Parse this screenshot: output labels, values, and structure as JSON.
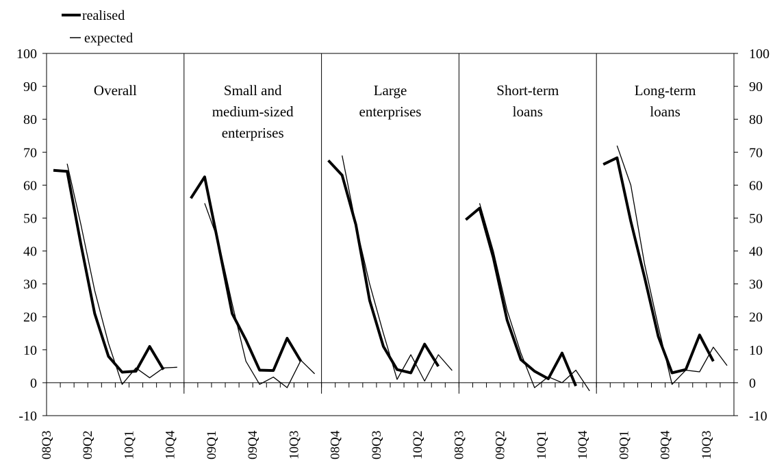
{
  "chart_data": {
    "type": "line",
    "legend": {
      "placement": "top-left",
      "entries": [
        {
          "label": "realised",
          "style": "thick"
        },
        {
          "label": "expected",
          "style": "thin"
        }
      ]
    },
    "y_axis": {
      "ylim": [
        -10,
        100
      ],
      "ticks": [
        -10,
        0,
        10,
        20,
        30,
        40,
        50,
        60,
        70,
        80,
        90,
        100
      ],
      "left_and_right": true
    },
    "grid": false,
    "x_period_labels": [
      "08Q3",
      "09Q2",
      "10Q1",
      "10Q4"
    ],
    "x_period_labels_sparse": [
      [
        "08Q3",
        "09Q2",
        "10Q1",
        "10Q4"
      ],
      [
        "09Q1",
        "09Q4",
        "10Q3"
      ],
      [
        "08Q4",
        "09Q3",
        "10Q2"
      ],
      [
        "08Q3",
        "09Q2",
        "10Q1",
        "10Q4"
      ],
      [
        "09Q1",
        "09Q4",
        "10Q3"
      ]
    ],
    "panels": [
      {
        "title_lines": [
          "Overall"
        ],
        "quarters": [
          "08Q3",
          "08Q4",
          "09Q1",
          "09Q2",
          "09Q3",
          "09Q4",
          "10Q1",
          "10Q2",
          "10Q3",
          "10Q4"
        ],
        "series": [
          {
            "name": "realised",
            "values": [
              64.5,
              64.2,
              42,
              21,
              8,
              3.2,
              3.5,
              11,
              4,
              null
            ]
          },
          {
            "name": "expected",
            "values": [
              null,
              66.5,
              48,
              28,
              12,
              -0.5,
              4.5,
              1.5,
              4.5,
              4.7
            ]
          }
        ]
      },
      {
        "title_lines": [
          "Small and",
          "medium-sized",
          "enterprises"
        ],
        "quarters": [
          "08Q3",
          "08Q4",
          "09Q1",
          "09Q2",
          "09Q3",
          "09Q4",
          "10Q1",
          "10Q2",
          "10Q3",
          "10Q4"
        ],
        "series": [
          {
            "name": "realised",
            "values": [
              56,
              62.5,
              42,
              21,
              13,
              3.8,
              3.7,
              13.5,
              6.5,
              null
            ]
          },
          {
            "name": "expected",
            "values": [
              null,
              54.5,
              43,
              24,
              6.5,
              -0.5,
              1.7,
              -1.5,
              6.8,
              2.7
            ]
          }
        ]
      },
      {
        "title_lines": [
          "Large",
          "enterprises"
        ],
        "quarters": [
          "08Q3",
          "08Q4",
          "09Q1",
          "09Q2",
          "09Q3",
          "09Q4",
          "10Q1",
          "10Q2",
          "10Q3",
          "10Q4"
        ],
        "series": [
          {
            "name": "realised",
            "values": [
              67.5,
              63,
              48,
              25,
              11,
              4,
              3,
              11.7,
              5,
              null
            ]
          },
          {
            "name": "expected",
            "values": [
              null,
              69,
              48,
              30,
              15,
              1,
              8.5,
              0.5,
              8.5,
              3.7
            ]
          }
        ]
      },
      {
        "title_lines": [
          "Short-term",
          "loans"
        ],
        "quarters": [
          "08Q3",
          "08Q4",
          "09Q1",
          "09Q2",
          "09Q3",
          "09Q4",
          "10Q1",
          "10Q2",
          "10Q3",
          "10Q4"
        ],
        "series": [
          {
            "name": "realised",
            "values": [
              49.5,
              53,
              38,
              19,
              7,
              3.5,
              1.2,
              9,
              -1,
              null
            ]
          },
          {
            "name": "expected",
            "values": [
              null,
              54.5,
              40,
              22,
              9,
              -1.5,
              1.8,
              0,
              3.8,
              -2.5
            ]
          }
        ]
      },
      {
        "title_lines": [
          "Long-term",
          "loans"
        ],
        "quarters": [
          "08Q3",
          "08Q4",
          "09Q1",
          "09Q2",
          "09Q3",
          "09Q4",
          "10Q1",
          "10Q2",
          "10Q3",
          "10Q4"
        ],
        "series": [
          {
            "name": "realised",
            "values": [
              66.3,
              68.3,
              49,
              32,
              14,
              3,
              4,
              14.5,
              6.5,
              null
            ]
          },
          {
            "name": "expected",
            "values": [
              null,
              72,
              60,
              36,
              17,
              -0.5,
              3.8,
              3.3,
              10.8,
              5.2
            ]
          }
        ]
      }
    ]
  }
}
